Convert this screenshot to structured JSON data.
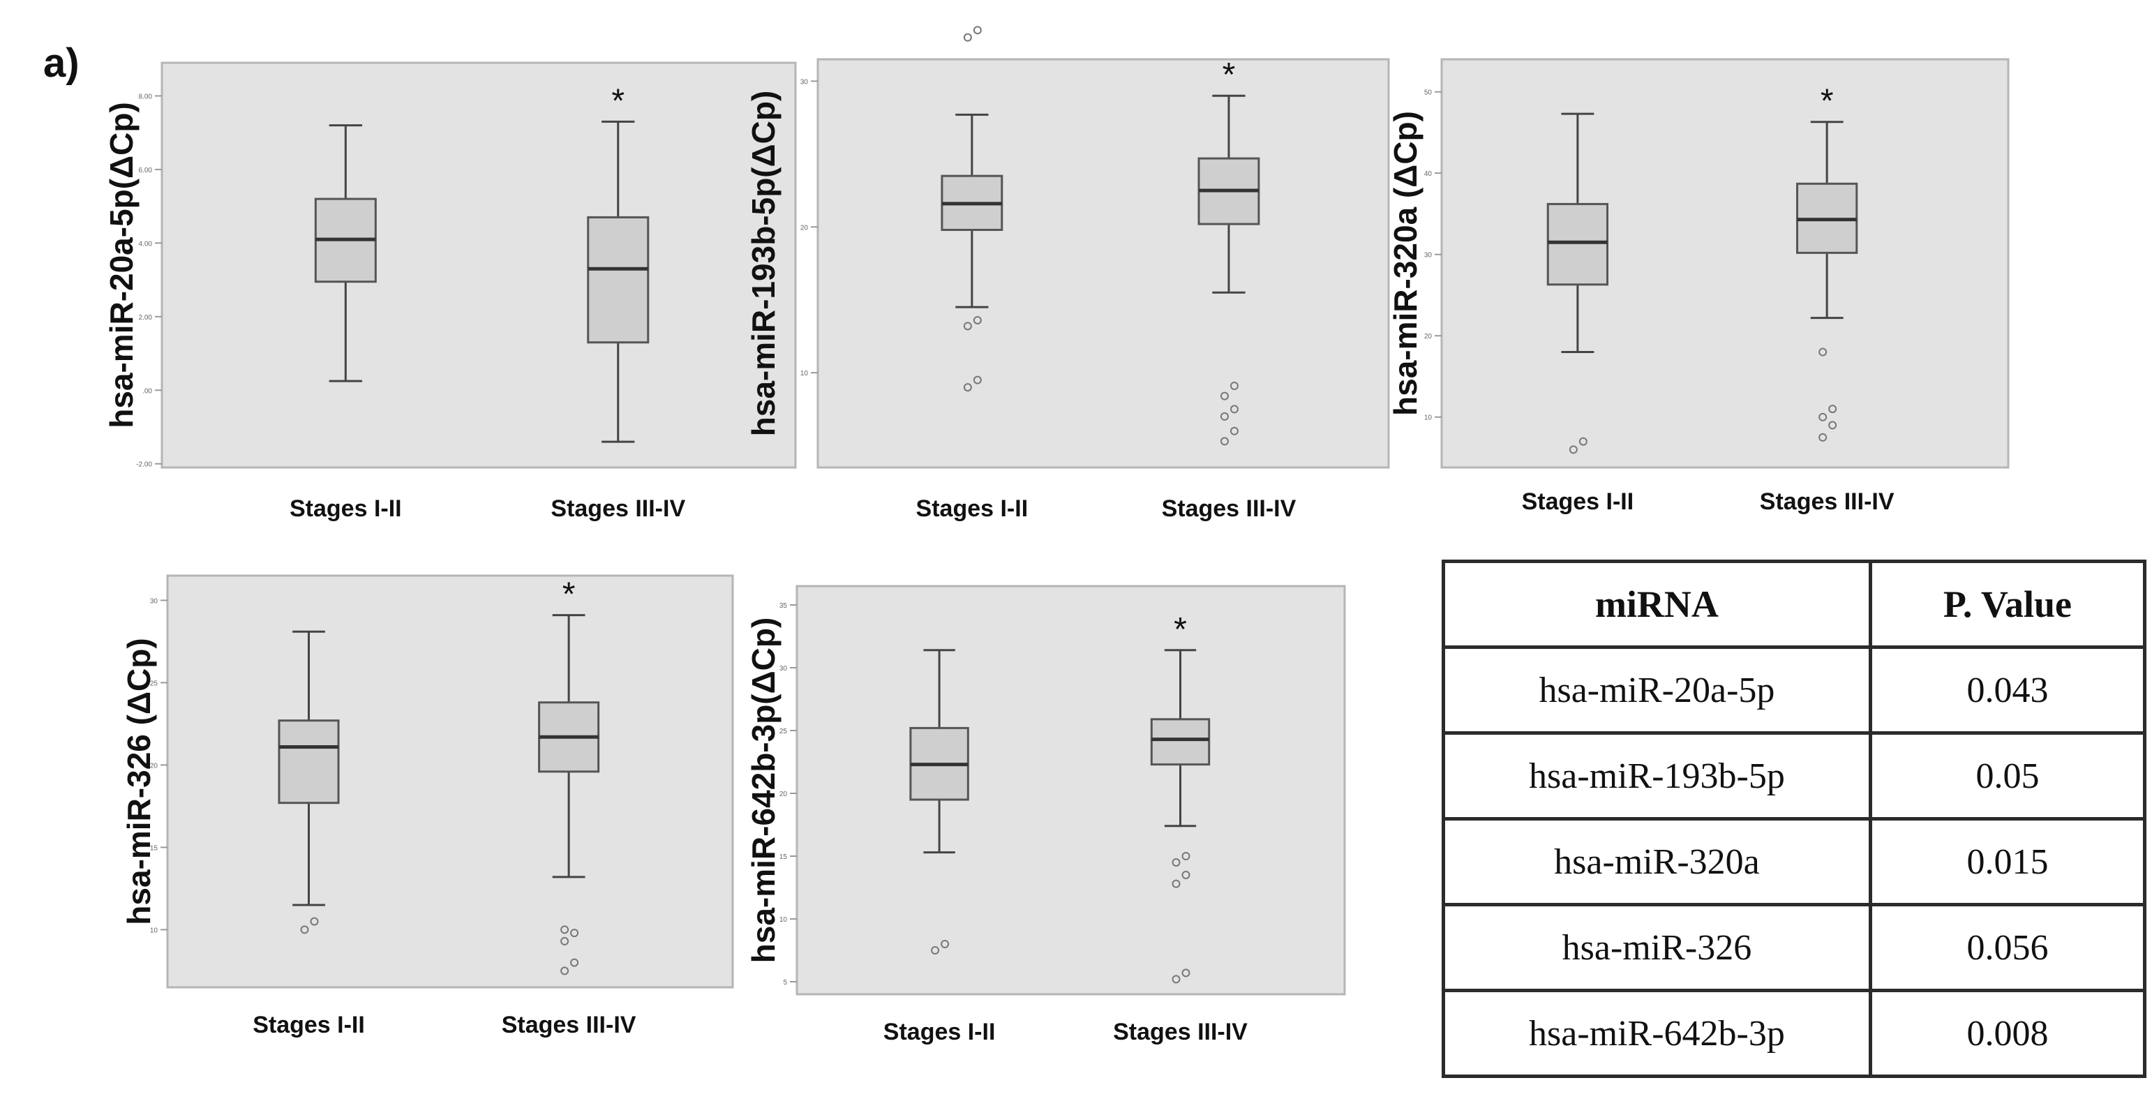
{
  "figure": {
    "panel_label": "a)"
  },
  "chart_data": [
    {
      "type": "boxplot",
      "ylabel": "hsa-miR-20a-5p(ΔCp)",
      "categories": [
        "Stages I-II",
        "Stages III-IV"
      ],
      "ylim": [
        -2.1,
        8.9
      ],
      "yticks": [
        -2,
        0,
        2,
        4,
        6,
        8
      ],
      "ytick_labels": [
        "-2.00",
        ".00",
        "2.00",
        "4.00",
        "6.00",
        "8.00"
      ],
      "boxes": [
        {
          "whisker_low": 0.25,
          "q1": 2.95,
          "median": 4.1,
          "q3": 5.2,
          "whisker_high": 7.2,
          "outliers": []
        },
        {
          "whisker_low": -1.4,
          "q1": 1.3,
          "median": 3.3,
          "q3": 4.7,
          "whisker_high": 7.3,
          "outliers": []
        }
      ],
      "significance": "*"
    },
    {
      "type": "boxplot",
      "ylabel": "hsa-miR-193b-5p(ΔCp)",
      "categories": [
        "Stages I-II",
        "Stages III-IV"
      ],
      "ylim": [
        3.5,
        31.5
      ],
      "yticks": [
        10,
        20,
        30
      ],
      "ytick_labels": [
        "10",
        "20",
        "30"
      ],
      "boxes": [
        {
          "whisker_low": 14.5,
          "q1": 19.8,
          "median": 21.6,
          "q3": 23.5,
          "whisker_high": 27.7,
          "outliers": [
            9,
            9.5,
            13.2,
            13.6,
            33,
            33.5
          ]
        },
        {
          "whisker_low": 15.5,
          "q1": 20.2,
          "median": 22.5,
          "q3": 24.7,
          "whisker_high": 29,
          "outliers": [
            5.3,
            6,
            7,
            7.5,
            8.4,
            9.1
          ]
        }
      ],
      "significance": "*"
    },
    {
      "type": "boxplot",
      "ylabel": "hsa-miR-320a (ΔCp)",
      "categories": [
        "Stages I-II",
        "Stages III-IV"
      ],
      "ylim": [
        3.8,
        54
      ],
      "yticks": [
        10,
        20,
        30,
        40,
        50
      ],
      "ytick_labels": [
        "10",
        "20",
        "30",
        "40",
        "50"
      ],
      "boxes": [
        {
          "whisker_low": 18,
          "q1": 26.3,
          "median": 31.5,
          "q3": 36.2,
          "whisker_high": 47.3,
          "outliers": [
            6,
            7
          ]
        },
        {
          "whisker_low": 22.2,
          "q1": 30.2,
          "median": 34.3,
          "q3": 38.7,
          "whisker_high": 46.3,
          "outliers": [
            7.5,
            9,
            10,
            11,
            18
          ]
        }
      ],
      "significance": "*"
    },
    {
      "type": "boxplot",
      "ylabel": "hsa-miR-326 (ΔCp)",
      "categories": [
        "Stages I-II",
        "Stages III-IV"
      ],
      "ylim": [
        6.5,
        31.5
      ],
      "yticks": [
        10,
        15,
        20,
        25,
        30
      ],
      "ytick_labels": [
        "10",
        "15",
        "20",
        "25",
        "30"
      ],
      "boxes": [
        {
          "whisker_low": 11.5,
          "q1": 17.7,
          "median": 21.1,
          "q3": 22.7,
          "whisker_high": 28.1,
          "outliers": [
            10,
            10.5
          ]
        },
        {
          "whisker_low": 13.2,
          "q1": 19.6,
          "median": 21.7,
          "q3": 23.8,
          "whisker_high": 29.1,
          "outliers": [
            7.5,
            8,
            9.3,
            9.8,
            10
          ]
        }
      ],
      "significance": "*"
    },
    {
      "type": "boxplot",
      "ylabel": "hsa-miR-642b-3p(ΔCp)",
      "categories": [
        "Stages I-II",
        "Stages III-IV"
      ],
      "ylim": [
        4,
        36.5
      ],
      "yticks": [
        5,
        10,
        15,
        20,
        25,
        30,
        35
      ],
      "ytick_labels": [
        "5",
        "10",
        "15",
        "20",
        "25",
        "30",
        "35"
      ],
      "boxes": [
        {
          "whisker_low": 15.3,
          "q1": 19.5,
          "median": 22.3,
          "q3": 25.2,
          "whisker_high": 31.4,
          "outliers": [
            7.5,
            8
          ]
        },
        {
          "whisker_low": 17.4,
          "q1": 22.3,
          "median": 24.3,
          "q3": 25.9,
          "whisker_high": 31.4,
          "outliers": [
            5.2,
            5.7,
            12.8,
            13.5,
            14.5,
            15
          ]
        }
      ],
      "significance": "*"
    }
  ],
  "table": {
    "headers": [
      "miRNA",
      "P. Value"
    ],
    "rows": [
      [
        "hsa-miR-20a-5p",
        "0.043"
      ],
      [
        "hsa-miR-193b-5p",
        "0.05"
      ],
      [
        "hsa-miR-320a",
        "0.015"
      ],
      [
        "hsa-miR-326",
        "0.056"
      ],
      [
        "hsa-miR-642b-3p",
        "0.008"
      ]
    ]
  }
}
